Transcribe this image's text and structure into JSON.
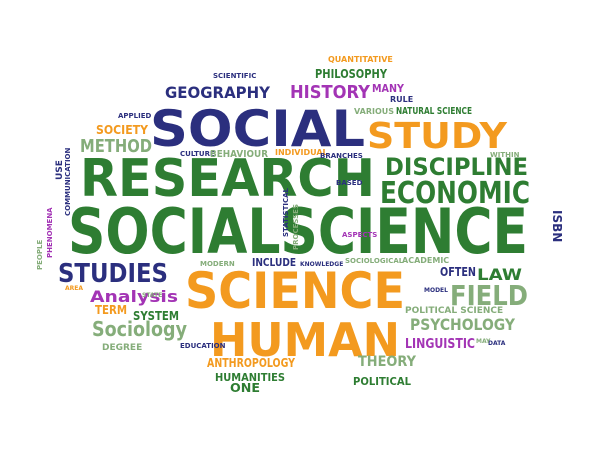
{
  "palette": {
    "green": "#2e7d32",
    "orange": "#f39a1f",
    "navy": "#2b2f7e",
    "purple": "#a334b5",
    "sage": "#85ad7a"
  },
  "words": [
    {
      "id": "w-socialscience",
      "text": "SOCIALSCIENCE",
      "color": "green"
    },
    {
      "id": "w-research",
      "text": "RESEARCH",
      "color": "green"
    },
    {
      "id": "w-social",
      "text": "SOCIAL",
      "color": "navy"
    },
    {
      "id": "w-science",
      "text": "SCIENCE",
      "color": "orange"
    },
    {
      "id": "w-human",
      "text": "HUMAN",
      "color": "orange"
    },
    {
      "id": "w-study",
      "text": "STUDY",
      "color": "orange"
    },
    {
      "id": "w-discipline",
      "text": "DISCIPLINE",
      "color": "green"
    },
    {
      "id": "w-economic",
      "text": "ECONOMIC",
      "color": "green"
    },
    {
      "id": "w-studies",
      "text": "STUDIES",
      "color": "navy"
    },
    {
      "id": "w-geography",
      "text": "GEOGRAPHY",
      "color": "navy"
    },
    {
      "id": "w-history",
      "text": "HISTORY",
      "color": "purple"
    },
    {
      "id": "w-field",
      "text": "FIELD",
      "color": "sage"
    },
    {
      "id": "w-method",
      "text": "METHOD",
      "color": "sage"
    },
    {
      "id": "w-analysis",
      "text": "Analysis",
      "color": "purple"
    },
    {
      "id": "w-sociology",
      "text": "Sociology",
      "color": "sage"
    },
    {
      "id": "w-psychology",
      "text": "PSYCHOLOGY",
      "color": "sage"
    },
    {
      "id": "w-theory",
      "text": "THEORY",
      "color": "sage"
    },
    {
      "id": "w-philosophy",
      "text": "PHILOSOPHY",
      "color": "green"
    },
    {
      "id": "w-law",
      "text": "LAW",
      "color": "green"
    },
    {
      "id": "w-anthropology",
      "text": "ANTHROPOLOGY",
      "color": "orange"
    },
    {
      "id": "w-humanities",
      "text": "HUMANITIES",
      "color": "green"
    },
    {
      "id": "w-one",
      "text": "ONE",
      "color": "green"
    },
    {
      "id": "w-political",
      "text": "POLITICAL",
      "color": "green"
    },
    {
      "id": "w-linguistic",
      "text": "LINGUISTIC",
      "color": "purple"
    },
    {
      "id": "w-system",
      "text": "SYSTEM",
      "color": "green"
    },
    {
      "id": "w-term",
      "text": "TERM",
      "color": "orange"
    },
    {
      "id": "w-society",
      "text": "SOCIETY",
      "color": "orange"
    },
    {
      "id": "w-isbn",
      "text": "ISBN",
      "color": "navy"
    },
    {
      "id": "w-often",
      "text": "OFTEN",
      "color": "navy"
    },
    {
      "id": "w-include",
      "text": "INCLUDE",
      "color": "navy"
    },
    {
      "id": "w-many",
      "text": "MANY",
      "color": "purple"
    },
    {
      "id": "w-rule",
      "text": "RULE",
      "color": "navy"
    },
    {
      "id": "w-quantitative",
      "text": "QUANTITATIVE",
      "color": "orange"
    },
    {
      "id": "w-scientific",
      "text": "SCIENTIFIC",
      "color": "navy"
    },
    {
      "id": "w-applied",
      "text": "APPLIED",
      "color": "navy"
    },
    {
      "id": "w-various",
      "text": "VARIOUS",
      "color": "sage"
    },
    {
      "id": "w-natural-science",
      "text": "NATURAL SCIENCE",
      "color": "green"
    },
    {
      "id": "w-culture",
      "text": "CULTURE",
      "color": "navy"
    },
    {
      "id": "w-behaviour",
      "text": "BEHAVIOUR",
      "color": "sage"
    },
    {
      "id": "w-individual",
      "text": "INDIVIDUAL",
      "color": "orange"
    },
    {
      "id": "w-branches",
      "text": "BRANCHES",
      "color": "navy"
    },
    {
      "id": "w-within",
      "text": "WITHIN",
      "color": "sage"
    },
    {
      "id": "w-use",
      "text": "USE",
      "color": "navy"
    },
    {
      "id": "w-communication",
      "text": "COMMUNICATION",
      "color": "navy"
    },
    {
      "id": "w-based",
      "text": "BASED",
      "color": "navy"
    },
    {
      "id": "w-statistical",
      "text": "STATISTICAL",
      "color": "navy"
    },
    {
      "id": "w-processes",
      "text": "PROCESSES",
      "color": "sage"
    },
    {
      "id": "w-aspects",
      "text": "ASPECTS",
      "color": "purple"
    },
    {
      "id": "w-people",
      "text": "PEOPLE",
      "color": "sage"
    },
    {
      "id": "w-phenomena",
      "text": "PHENOMENA",
      "color": "purple"
    },
    {
      "id": "w-modern",
      "text": "MODERN",
      "color": "sage"
    },
    {
      "id": "w-knowledge",
      "text": "KNOWLEDGE",
      "color": "navy"
    },
    {
      "id": "w-sociological",
      "text": "SOCIOLOGICAL",
      "color": "sage"
    },
    {
      "id": "w-academic",
      "text": "ACADEMIC",
      "color": "sage"
    },
    {
      "id": "w-area",
      "text": "AREA",
      "color": "orange"
    },
    {
      "id": "w-state",
      "text": "STATE",
      "color": "sage"
    },
    {
      "id": "w-model",
      "text": "MODEL",
      "color": "navy"
    },
    {
      "id": "w-political-science",
      "text": "POLITICAL SCIENCE",
      "color": "sage"
    },
    {
      "id": "w-degree",
      "text": "DEGREE",
      "color": "sage"
    },
    {
      "id": "w-education",
      "text": "EDUCATION",
      "color": "navy"
    },
    {
      "id": "w-data",
      "text": "DATA",
      "color": "navy"
    },
    {
      "id": "w-may",
      "text": "MAY",
      "color": "sage"
    }
  ]
}
